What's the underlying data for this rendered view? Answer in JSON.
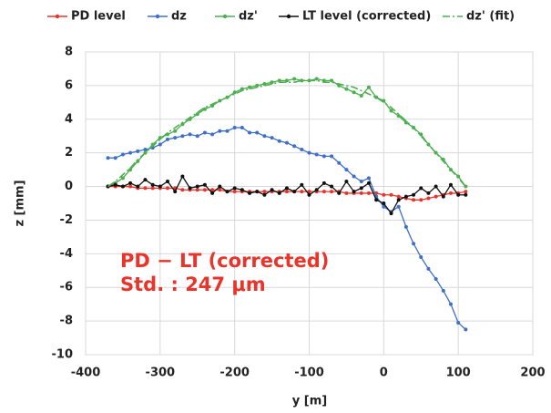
{
  "chart_data": {
    "type": "line",
    "x_label": "y [m]",
    "y_label": "z [mm]",
    "xlim": [
      -400,
      200
    ],
    "xticks": [
      -400,
      -300,
      -200,
      -100,
      0,
      100,
      200
    ],
    "ylim": [
      -10,
      8
    ],
    "yticks": [
      -10,
      -8,
      -6,
      -4,
      -2,
      0,
      2,
      4,
      6,
      8
    ],
    "grid": true,
    "legend": "top",
    "annotations": [
      "PD − LT (corrected)",
      "Std. : 247 μm"
    ],
    "annotation_color": "#e8342a",
    "x": [
      -370,
      -360,
      -350,
      -340,
      -330,
      -320,
      -310,
      -300,
      -290,
      -280,
      -270,
      -260,
      -250,
      -240,
      -230,
      -220,
      -210,
      -200,
      -190,
      -180,
      -170,
      -160,
      -150,
      -140,
      -130,
      -120,
      -110,
      -100,
      -90,
      -80,
      -70,
      -60,
      -50,
      -40,
      -30,
      -20,
      -10,
      0,
      10,
      20,
      30,
      40,
      50,
      60,
      70,
      80,
      90,
      100,
      110
    ],
    "series": [
      {
        "name": "PD level",
        "color": "#e8342a",
        "style": "solid",
        "markers": true,
        "values": [
          0.0,
          0.0,
          0.0,
          0.0,
          -0.1,
          -0.1,
          -0.1,
          -0.1,
          -0.1,
          -0.1,
          -0.2,
          -0.2,
          -0.2,
          -0.2,
          -0.2,
          -0.2,
          -0.3,
          -0.3,
          -0.3,
          -0.3,
          -0.3,
          -0.3,
          -0.3,
          -0.3,
          -0.3,
          -0.3,
          -0.3,
          -0.3,
          -0.3,
          -0.3,
          -0.3,
          -0.3,
          -0.4,
          -0.4,
          -0.4,
          -0.4,
          -0.4,
          -0.5,
          -0.5,
          -0.6,
          -0.7,
          -0.8,
          -0.8,
          -0.7,
          -0.6,
          -0.5,
          -0.4,
          -0.4,
          -0.3
        ]
      },
      {
        "name": "dz",
        "color": "#3f6fc6",
        "style": "solid",
        "markers": true,
        "values": [
          1.7,
          1.7,
          1.9,
          2.0,
          2.1,
          2.2,
          2.3,
          2.5,
          2.8,
          2.9,
          3.0,
          3.1,
          3.0,
          3.2,
          3.1,
          3.3,
          3.3,
          3.5,
          3.5,
          3.2,
          3.2,
          3.0,
          2.9,
          2.7,
          2.6,
          2.4,
          2.2,
          2.0,
          1.9,
          1.8,
          1.8,
          1.4,
          1.0,
          0.6,
          0.3,
          0.5,
          -0.6,
          -1.2,
          -1.5,
          -1.2,
          -2.4,
          -3.4,
          -4.2,
          -4.9,
          -5.5,
          -6.2,
          -7.0,
          -8.1,
          -8.5
        ]
      },
      {
        "name": "dz'",
        "color": "#4caf50",
        "style": "solid",
        "markers": true,
        "values": [
          0.0,
          0.2,
          0.5,
          1.0,
          1.5,
          2.0,
          2.5,
          2.9,
          3.1,
          3.3,
          3.7,
          4.0,
          4.3,
          4.6,
          4.8,
          5.1,
          5.3,
          5.6,
          5.8,
          5.9,
          6.0,
          6.1,
          6.2,
          6.3,
          6.3,
          6.4,
          6.3,
          6.3,
          6.4,
          6.3,
          6.3,
          6.0,
          5.8,
          5.6,
          5.4,
          5.9,
          5.3,
          5.1,
          4.5,
          4.2,
          3.8,
          3.5,
          3.1,
          2.5,
          2.0,
          1.6,
          1.0,
          0.6,
          0.0
        ]
      },
      {
        "name": "LT level (corrected)",
        "color": "#111111",
        "style": "solid",
        "markers": true,
        "values": [
          0.0,
          0.1,
          0.0,
          0.2,
          0.0,
          0.4,
          0.1,
          0.0,
          0.3,
          -0.3,
          0.6,
          -0.1,
          0.0,
          0.1,
          -0.4,
          0.0,
          -0.3,
          -0.1,
          -0.2,
          -0.4,
          -0.3,
          -0.5,
          -0.2,
          -0.4,
          -0.1,
          -0.3,
          0.1,
          -0.5,
          -0.2,
          0.2,
          0.0,
          -0.4,
          0.3,
          -0.3,
          -0.1,
          0.2,
          -0.8,
          -1.0,
          -1.6,
          -0.8,
          -0.6,
          -0.5,
          -0.1,
          -0.4,
          0.0,
          -0.6,
          0.1,
          -0.5,
          -0.5
        ]
      },
      {
        "name": "dz' (fit)",
        "color": "#4caf50",
        "style": "dashdot",
        "markers": false,
        "values": [
          0.0,
          0.3,
          0.7,
          1.1,
          1.6,
          2.0,
          2.4,
          2.8,
          3.2,
          3.5,
          3.8,
          4.1,
          4.4,
          4.7,
          4.9,
          5.1,
          5.3,
          5.5,
          5.7,
          5.8,
          5.9,
          6.0,
          6.1,
          6.2,
          6.2,
          6.2,
          6.3,
          6.3,
          6.3,
          6.2,
          6.2,
          6.1,
          6.0,
          5.9,
          5.7,
          5.5,
          5.3,
          5.0,
          4.7,
          4.3,
          3.9,
          3.5,
          3.0,
          2.5,
          2.0,
          1.5,
          1.0,
          0.5,
          0.0
        ]
      }
    ]
  }
}
